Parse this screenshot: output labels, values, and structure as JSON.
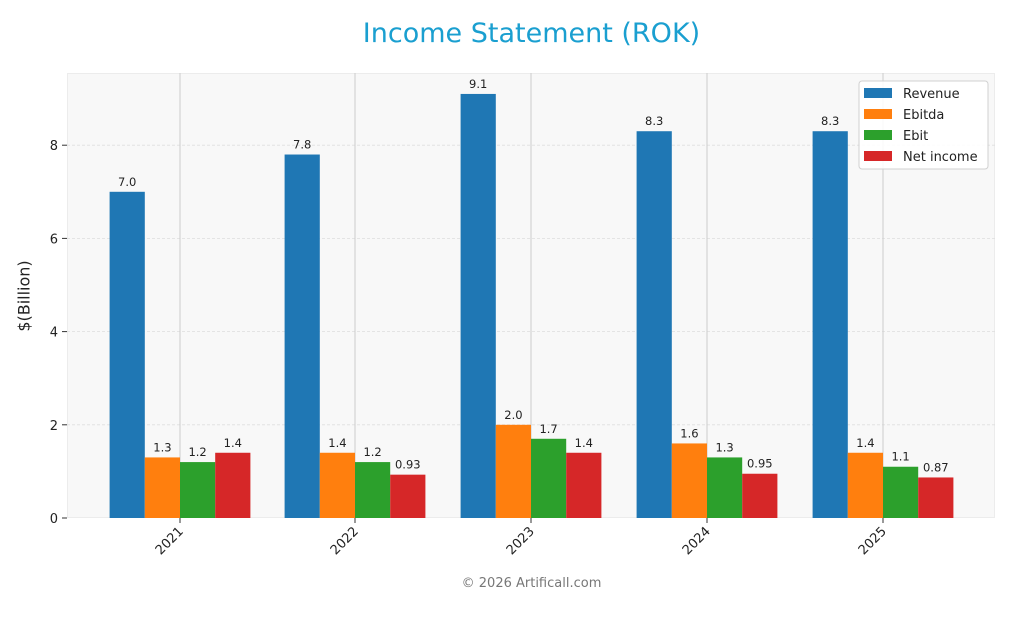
{
  "title": "Income Statement (ROK)",
  "footer": "© 2026 Artificall.com",
  "colors": {
    "Revenue": "#1f77b4",
    "Ebitda": "#ff7f0e",
    "Ebit": "#2ca02c",
    "Net income": "#d62728"
  },
  "chart_data": {
    "type": "bar",
    "title": "Income Statement (ROK)",
    "xlabel": "",
    "ylabel": "$(Billion)",
    "categories": [
      "2021",
      "2022",
      "2023",
      "2024",
      "2025"
    ],
    "series": [
      {
        "name": "Revenue",
        "values": [
          7.0,
          7.8,
          9.1,
          8.3,
          8.3
        ],
        "labels": [
          "7.0",
          "7.8",
          "9.1",
          "8.3",
          "8.3"
        ]
      },
      {
        "name": "Ebitda",
        "values": [
          1.3,
          1.4,
          2.0,
          1.6,
          1.4
        ],
        "labels": [
          "1.3",
          "1.4",
          "2.0",
          "1.6",
          "1.4"
        ]
      },
      {
        "name": "Ebit",
        "values": [
          1.2,
          1.2,
          1.7,
          1.3,
          1.1
        ],
        "labels": [
          "1.2",
          "1.2",
          "1.7",
          "1.3",
          "1.1"
        ]
      },
      {
        "name": "Net income",
        "values": [
          1.4,
          0.93,
          1.4,
          0.95,
          0.87
        ],
        "labels": [
          "1.4",
          "0.93",
          "1.4",
          "0.95",
          "0.87"
        ]
      }
    ],
    "yticks": [
      0,
      2,
      4,
      6,
      8
    ],
    "ylim": [
      0,
      9.55
    ],
    "grid": true,
    "legend_position": "upper right"
  }
}
